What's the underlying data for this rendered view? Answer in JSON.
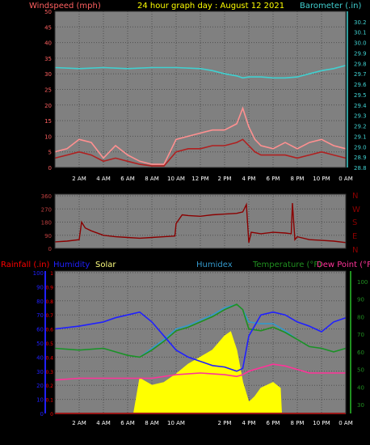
{
  "header": {
    "left_title": "Windspeed (mph)",
    "center_title": "24 hour graph day : August 12 2021",
    "right_title": "Barometer (.in)"
  },
  "colors": {
    "wind_label": "#ff6060",
    "title": "#ffff00",
    "barometer": "#40d0d0",
    "direction": "#8b0000",
    "rainfall": "#ff0000",
    "humidity": "#2020ff",
    "solar": "#ffff00",
    "humidex": "#3399cc",
    "temperature": "#209020",
    "dewpoint": "#ff3399",
    "plot_bg": "#808080",
    "grid": "#505050"
  },
  "x_ticks": [
    "2 AM",
    "4 AM",
    "6 AM",
    "8 AM",
    "10 AM",
    "12 PM",
    "2 PM",
    "4 PM",
    "6 PM",
    "8 PM",
    "10 PM",
    "0 AM"
  ],
  "x_ticks_bottom": [
    "2 AM",
    "4 AM",
    "6 AM",
    "8 AM",
    "10 AM",
    "2 PM",
    "4 PM",
    "6 PM",
    "8 PM",
    "10 PM",
    "0 AM"
  ],
  "chart_data": [
    {
      "type": "line",
      "name": "wind_barometer",
      "title": "24 hour graph day : August 12 2021",
      "ylabel_left": "Windspeed (mph)",
      "ylabel_right": "Barometer (.in)",
      "x_range_hours": [
        0,
        24
      ],
      "yleft_ticks": [
        0,
        5,
        10,
        15,
        20,
        25,
        30,
        35,
        40,
        45,
        50
      ],
      "yleft_lim": [
        0,
        50
      ],
      "yright_ticks": [
        28.8,
        28.9,
        29.0,
        29.1,
        29.2,
        29.3,
        29.4,
        29.5,
        29.6,
        29.7,
        29.8,
        29.9,
        30.0,
        30.1,
        30.2
      ],
      "yright_lim": [
        28.8,
        30.3
      ],
      "series": [
        {
          "name": "Barometer (.in)",
          "axis": "right",
          "x": [
            0,
            2,
            4,
            6,
            8,
            10,
            12,
            13,
            14,
            15,
            15.5,
            16,
            17,
            18,
            19,
            20,
            21,
            22,
            23,
            24
          ],
          "values": [
            29.76,
            29.75,
            29.76,
            29.75,
            29.76,
            29.76,
            29.75,
            29.73,
            29.7,
            29.68,
            29.66,
            29.67,
            29.67,
            29.66,
            29.66,
            29.67,
            29.7,
            29.73,
            29.75,
            29.78
          ]
        },
        {
          "name": "wind_gust",
          "axis": "left",
          "x": [
            0,
            1,
            2,
            3,
            4,
            5,
            6,
            7,
            8,
            9,
            10,
            11,
            12,
            13,
            14,
            15,
            15.5,
            16,
            16.5,
            17,
            18,
            19,
            20,
            21,
            22,
            23,
            24
          ],
          "values": [
            5,
            6,
            9,
            8,
            3,
            7,
            4,
            2,
            1,
            1,
            9,
            10,
            11,
            12,
            12,
            14,
            19,
            13,
            9,
            7,
            6,
            8,
            6,
            8,
            9,
            7,
            6
          ]
        },
        {
          "name": "wind_average",
          "axis": "left",
          "x": [
            0,
            1,
            2,
            3,
            4,
            5,
            6,
            7,
            8,
            9,
            10,
            11,
            12,
            13,
            14,
            15,
            15.5,
            16,
            16.5,
            17,
            18,
            19,
            20,
            21,
            22,
            23,
            24
          ],
          "values": [
            3,
            4,
            5,
            4,
            2,
            3,
            2,
            1,
            0.5,
            0.5,
            5,
            6,
            6,
            7,
            7,
            8,
            9,
            7,
            5,
            4,
            4,
            4,
            3,
            4,
            5,
            4,
            3
          ]
        }
      ]
    },
    {
      "type": "line",
      "name": "wind_direction",
      "ylabel_right": "N W S E N",
      "y_ticks": [
        0,
        90,
        180,
        270,
        360
      ],
      "y_lim": [
        0,
        360
      ],
      "compass_labels": [
        "N",
        "W",
        "S",
        "E",
        "N"
      ],
      "series": [
        {
          "name": "Wind direction",
          "x": [
            0,
            1,
            2,
            2.2,
            2.5,
            3,
            4,
            5,
            6,
            7,
            8,
            9,
            9.9,
            10,
            10.5,
            11,
            12,
            13,
            14,
            15,
            15.5,
            15.8,
            16,
            16.2,
            17,
            18,
            19,
            19.5,
            19.6,
            19.8,
            20,
            21,
            22,
            23,
            24
          ],
          "values": [
            45,
            50,
            60,
            180,
            140,
            120,
            90,
            80,
            75,
            70,
            75,
            80,
            85,
            170,
            230,
            225,
            220,
            230,
            235,
            240,
            250,
            300,
            40,
            110,
            100,
            110,
            105,
            100,
            310,
            60,
            80,
            60,
            55,
            50,
            40
          ]
        }
      ]
    },
    {
      "type": "line",
      "name": "rain_humidity_solar_temperature",
      "legend": [
        "Rainfall (.in)",
        "Humidity",
        "Solar",
        "Humidex",
        "Temperature (°F)",
        "Dew Point (°F"
      ],
      "yleft_rain_ticks": [
        0,
        0.1,
        0.2,
        0.3,
        0.4,
        0.5,
        0.6,
        0.7,
        0.8,
        0.9,
        1
      ],
      "yleft_humidity_ticks": [
        0,
        10,
        20,
        30,
        40,
        50,
        60,
        70,
        80,
        90,
        100
      ],
      "yright_ticks": [
        30,
        40,
        50,
        60,
        70,
        80,
        90,
        100
      ],
      "yright_lim": [
        25,
        105
      ],
      "series": [
        {
          "name": "Humidity",
          "x": [
            0,
            2,
            4,
            5,
            6,
            7,
            8,
            9,
            10,
            11,
            12,
            13,
            14,
            15,
            15.5,
            16,
            17,
            18,
            19,
            20,
            21,
            22,
            23,
            24
          ],
          "values": [
            60,
            62,
            65,
            68,
            70,
            72,
            65,
            55,
            45,
            40,
            37,
            34,
            33,
            30,
            32,
            55,
            70,
            72,
            70,
            65,
            62,
            58,
            65,
            68
          ]
        },
        {
          "name": "Temperature (°F)",
          "x": [
            0,
            2,
            4,
            5,
            6,
            7,
            8,
            9,
            10,
            11,
            12,
            13,
            14,
            15,
            15.5,
            16,
            17,
            18,
            19,
            20,
            21,
            22,
            23,
            24
          ],
          "values": [
            62,
            61,
            62,
            60,
            58,
            57,
            61,
            66,
            72,
            74,
            77,
            80,
            84,
            87,
            84,
            73,
            72,
            74,
            71,
            67,
            63,
            62,
            60,
            62
          ]
        },
        {
          "name": "Humidex",
          "x": [
            0,
            2,
            4,
            5,
            6,
            7,
            8,
            9,
            10,
            11,
            12,
            13,
            14,
            15,
            15.5,
            16,
            17,
            18,
            19,
            20,
            21,
            22,
            23,
            24
          ],
          "values": [
            62,
            61,
            62,
            60,
            58,
            57,
            62,
            67,
            73,
            75,
            78,
            81,
            85,
            87,
            84,
            77,
            76,
            76,
            72,
            67,
            63,
            62,
            60,
            62
          ]
        },
        {
          "name": "Dew Point (°F",
          "x": [
            0,
            2,
            4,
            6,
            8,
            10,
            12,
            14,
            15,
            15.5,
            16,
            17,
            18,
            19,
            20,
            21,
            22,
            23,
            24
          ],
          "values": [
            44,
            45,
            45,
            45,
            45,
            47,
            48,
            47,
            46,
            47,
            49,
            51,
            53,
            52,
            50,
            48,
            48,
            48,
            48
          ]
        },
        {
          "name": "Solar",
          "x": [
            0,
            6.5,
            7,
            8,
            9,
            10,
            11,
            12,
            13,
            14,
            14.5,
            15,
            15.5,
            16,
            16.5,
            17,
            18,
            18.6,
            18.7,
            24
          ],
          "values": [
            0,
            0,
            25,
            20,
            22,
            28,
            35,
            40,
            45,
            55,
            58,
            45,
            22,
            8,
            12,
            18,
            22,
            18,
            0,
            0
          ]
        },
        {
          "name": "Rainfall (.in)",
          "x": [
            0,
            24
          ],
          "values": [
            0,
            0
          ]
        }
      ]
    }
  ]
}
